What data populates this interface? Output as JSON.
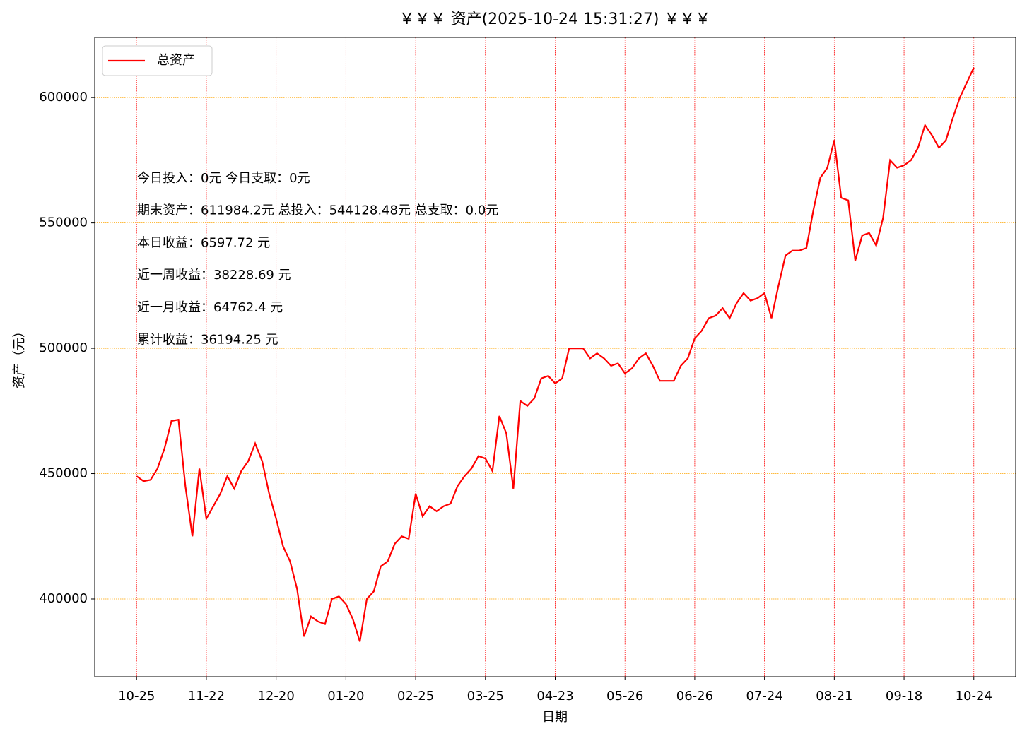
{
  "chart_data": {
    "type": "line",
    "title": "￥￥￥ 资产(2025-10-24 15:31:27) ￥￥￥",
    "x_label": "日期",
    "y_label": "资产（元）",
    "categories": [
      "10-25",
      null,
      null,
      null,
      null,
      null,
      null,
      null,
      null,
      null,
      "11-22",
      null,
      null,
      null,
      null,
      null,
      null,
      null,
      null,
      null,
      "12-20",
      null,
      null,
      null,
      null,
      null,
      null,
      null,
      null,
      null,
      "01-20",
      null,
      null,
      null,
      null,
      null,
      null,
      null,
      null,
      null,
      "02-25",
      null,
      null,
      null,
      null,
      null,
      null,
      null,
      null,
      null,
      "03-25",
      null,
      null,
      null,
      null,
      null,
      null,
      null,
      null,
      null,
      "04-23",
      null,
      null,
      null,
      null,
      null,
      null,
      null,
      null,
      null,
      "05-26",
      null,
      null,
      null,
      null,
      null,
      null,
      null,
      null,
      null,
      "06-26",
      null,
      null,
      null,
      null,
      null,
      null,
      null,
      null,
      null,
      "07-24",
      null,
      null,
      null,
      null,
      null,
      null,
      null,
      null,
      null,
      "08-21",
      null,
      null,
      null,
      null,
      null,
      null,
      null,
      null,
      null,
      "09-18",
      null,
      null,
      null,
      null,
      null,
      null,
      null,
      null,
      null,
      "10-24"
    ],
    "series": [
      {
        "name": "总资产",
        "color": "#ff0000",
        "values": [
          449000,
          447000,
          447500,
          452000,
          460000,
          471000,
          471500,
          445000,
          425000,
          452000,
          432000,
          437000,
          442000,
          449000,
          444000,
          451000,
          455000,
          462000,
          455000,
          442000,
          432000,
          421000,
          415000,
          404000,
          385000,
          393000,
          391000,
          390000,
          400000,
          401000,
          398000,
          392000,
          383000,
          400000,
          403000,
          413000,
          415000,
          422000,
          425000,
          424000,
          442000,
          433000,
          437000,
          435000,
          437000,
          438000,
          445000,
          449000,
          452000,
          457000,
          456000,
          451000,
          473000,
          466000,
          444000,
          479000,
          477000,
          480000,
          488000,
          489000,
          486000,
          488000,
          500000,
          500000,
          500000,
          496000,
          498000,
          496000,
          493000,
          494000,
          490000,
          492000,
          496000,
          498000,
          493000,
          487000,
          487000,
          487000,
          493000,
          496000,
          504000,
          507000,
          512000,
          513000,
          516000,
          512000,
          518000,
          522000,
          519000,
          520000,
          522000,
          512000,
          525000,
          537000,
          539000,
          539000,
          540000,
          555000,
          568000,
          572000,
          583000,
          560000,
          559000,
          535000,
          545000,
          546000,
          541000,
          552000,
          575000,
          572000,
          573000,
          575000,
          580000,
          589000,
          585000,
          580000,
          583000,
          592000,
          600000,
          606000,
          612000
        ]
      }
    ],
    "ylim": [
      369000,
      624000
    ],
    "yticks": [
      400000,
      450000,
      500000,
      550000,
      600000
    ],
    "grid": true,
    "xgrid_color": "#ff0000",
    "ygrid_color": "#ffa500",
    "legend": "upper-left",
    "annotations": [
      {
        "text": "今日投入：0元 今日支取：0元",
        "color": "#000000"
      },
      {
        "text": "期末资产：611984.2元 总投入：544128.48元  总支取：0.0元",
        "color": "#000000"
      },
      {
        "text": "本日收益：6597.72 元",
        "color": "#ff0000"
      },
      {
        "text": "近一周收益：38228.69 元",
        "color": "#ff0000"
      },
      {
        "text": "近一月收益：64762.4 元",
        "color": "#ff0000"
      },
      {
        "text": "累计收益：36194.25 元",
        "color": "#ff0000"
      }
    ]
  }
}
